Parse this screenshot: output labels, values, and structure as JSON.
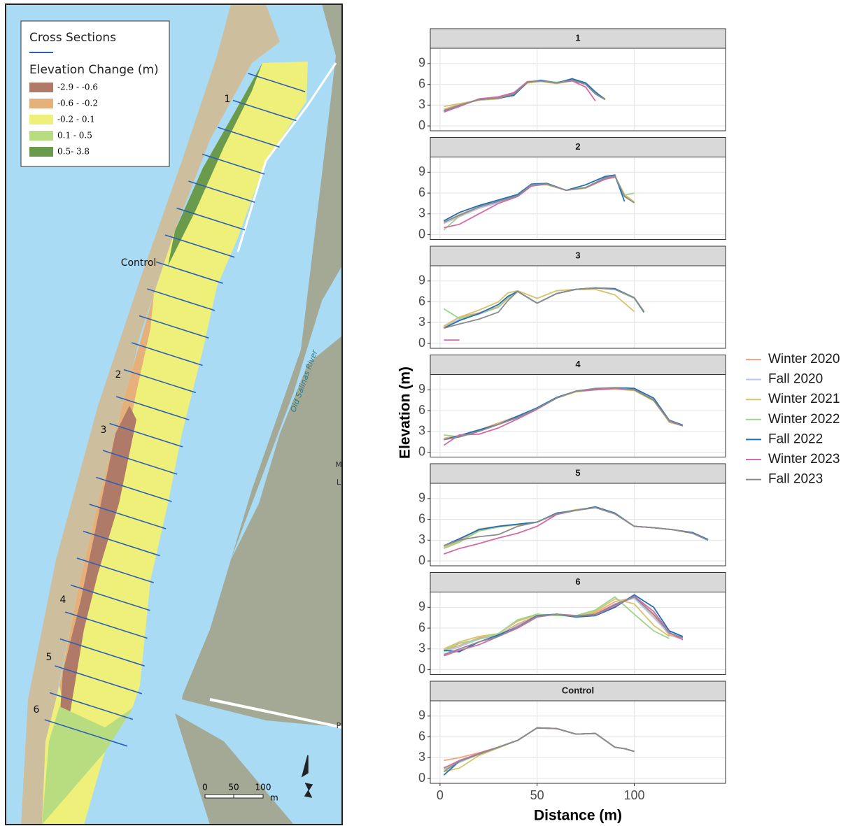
{
  "map": {
    "legend_title": "Cross Sections",
    "legend_subtitle": "Elevation Change (m)",
    "classes": [
      {
        "label": "-2.9 - -0.6",
        "color": "#b07a68"
      },
      {
        "label": "-0.6 - -0.2",
        "color": "#e6b07a"
      },
      {
        "label": "-0.2 - 0.1",
        "color": "#eef07a"
      },
      {
        "label": "0.1 - 0.5",
        "color": "#b8dc80"
      },
      {
        "label": "0.5- 3.8",
        "color": "#6a9a4c"
      }
    ],
    "labels": [
      "1",
      "Control",
      "2",
      "3",
      "4",
      "5",
      "6"
    ],
    "river": "Old Salinas River",
    "scale": [
      "0",
      "50",
      "100",
      "m"
    ],
    "edge_labels": [
      "M",
      "L",
      "P"
    ]
  },
  "chart_data": {
    "type": "line",
    "xlabel": "Distance (m)",
    "ylabel": "Elevation (m)",
    "xlim": [
      -5,
      147
    ],
    "xticks": [
      0,
      50,
      100
    ],
    "ylim": [
      -0.7,
      11.2
    ],
    "yticks": [
      0,
      3,
      6,
      9
    ],
    "grid": true,
    "legend_position": "right",
    "series": [
      {
        "name": "Winter 2020",
        "color": "#f4a582"
      },
      {
        "name": "Fall 2020",
        "color": "#b9c3ee"
      },
      {
        "name": "Winter 2021",
        "color": "#d6c46a"
      },
      {
        "name": "Winter 2022",
        "color": "#9fd28c"
      },
      {
        "name": "Fall 2022",
        "color": "#2070b4"
      },
      {
        "name": "Winter 2023",
        "color": "#d66aa8"
      },
      {
        "name": "Fall 2023",
        "color": "#8c8c8c"
      }
    ],
    "facets": [
      {
        "title": "1",
        "x": [
          2,
          10,
          20,
          30,
          38,
          45,
          52,
          60,
          68,
          75,
          80,
          85
        ],
        "series": [
          {
            "values": [
              2.4,
              3.1,
              3.8,
              4.1,
              4.7,
              6.2,
              6.5,
              6.2,
              6.5,
              6.1,
              4.7,
              3.9
            ]
          },
          {
            "values": [
              2.2,
              3.0,
              3.8,
              4.0,
              4.6,
              6.3,
              6.5,
              6.2,
              6.6,
              6.0,
              4.6,
              3.8
            ]
          },
          {
            "values": [
              2.8,
              3.2,
              3.7,
              3.9,
              4.5,
              6.2,
              6.4,
              6.1,
              6.5,
              6.1,
              4.8,
              3.9
            ]
          },
          {
            "values": [
              2.3,
              3.0,
              3.8,
              4.0,
              4.6,
              6.3,
              6.5,
              6.3,
              6.6,
              6.2,
              4.7,
              3.8
            ]
          },
          {
            "values": [
              2.1,
              2.9,
              3.8,
              4.0,
              4.4,
              6.3,
              6.6,
              6.2,
              6.8,
              6.2,
              4.9,
              3.8
            ]
          },
          {
            "values": [
              2.0,
              2.8,
              3.9,
              4.2,
              4.8,
              6.4,
              6.5,
              6.2,
              6.5,
              5.6,
              3.6,
              null
            ]
          },
          {
            "values": [
              2.2,
              3.0,
              3.8,
              4.0,
              4.6,
              6.3,
              6.5,
              6.2,
              6.6,
              6.0,
              4.6,
              3.8
            ]
          }
        ]
      },
      {
        "title": "2",
        "x": [
          2,
          10,
          20,
          30,
          40,
          47,
          55,
          65,
          75,
          85,
          90,
          95,
          100
        ],
        "series": [
          {
            "values": [
              1.8,
              2.9,
              4.0,
              4.8,
              5.7,
              7.2,
              7.3,
              6.4,
              6.8,
              8.2,
              8.5,
              5.6,
              4.6
            ]
          },
          {
            "values": [
              1.6,
              2.6,
              3.8,
              4.6,
              5.6,
              7.1,
              7.3,
              6.4,
              6.8,
              8.2,
              8.4,
              5.5,
              4.6
            ]
          },
          {
            "values": [
              1.8,
              2.8,
              4.0,
              4.9,
              5.6,
              7.2,
              7.2,
              6.4,
              6.7,
              8.0,
              8.4,
              5.8,
              4.7
            ]
          },
          {
            "values": [
              0.7,
              2.7,
              4.0,
              4.8,
              5.6,
              7.2,
              7.3,
              6.4,
              6.8,
              8.1,
              8.5,
              5.7,
              6.0
            ]
          },
          {
            "values": [
              2.0,
              3.2,
              4.2,
              5.0,
              5.8,
              7.3,
              7.4,
              6.4,
              7.2,
              8.4,
              8.6,
              4.8,
              null
            ]
          },
          {
            "values": [
              1.0,
              1.5,
              3.0,
              4.5,
              5.5,
              7.0,
              7.3,
              6.4,
              6.8,
              8.0,
              8.3,
              null,
              null
            ]
          },
          {
            "values": [
              1.8,
              2.8,
              4.0,
              4.8,
              5.6,
              7.2,
              7.3,
              6.4,
              6.8,
              8.2,
              8.5,
              5.5,
              4.6
            ]
          }
        ]
      },
      {
        "title": "3",
        "x": [
          2,
          10,
          20,
          30,
          35,
          40,
          50,
          60,
          70,
          80,
          90,
          100,
          105
        ],
        "series": [
          {
            "values": [
              2.5,
              3.8,
              4.4,
              5.3,
              6.6,
              7.5,
              5.8,
              7.2,
              7.8,
              8.0,
              7.8,
              6.5,
              4.5
            ]
          },
          {
            "values": [
              2.3,
              3.5,
              4.2,
              5.2,
              6.5,
              7.5,
              5.8,
              7.2,
              7.8,
              8.0,
              7.8,
              6.5,
              4.5
            ]
          },
          {
            "values": [
              2.4,
              3.8,
              4.8,
              6.0,
              7.3,
              7.6,
              6.5,
              7.6,
              7.8,
              7.8,
              7.0,
              4.6,
              null
            ]
          },
          {
            "values": [
              5.0,
              3.6,
              4.3,
              5.2,
              6.5,
              7.5,
              5.8,
              7.2,
              7.8,
              8.0,
              7.8,
              6.5,
              4.5
            ]
          },
          {
            "values": [
              2.2,
              3.3,
              4.3,
              5.6,
              6.8,
              7.5,
              5.8,
              7.2,
              7.8,
              8.0,
              7.9,
              6.6,
              4.5
            ]
          },
          {
            "values": [
              0.5,
              0.5,
              null,
              null,
              null,
              null,
              null,
              null,
              null,
              null,
              null,
              null,
              null
            ]
          },
          {
            "values": [
              2.2,
              2.8,
              3.5,
              4.5,
              6.2,
              7.5,
              5.8,
              7.2,
              7.8,
              8.0,
              7.8,
              6.6,
              4.6
            ]
          }
        ]
      },
      {
        "title": "4",
        "x": [
          2,
          10,
          20,
          30,
          40,
          50,
          60,
          70,
          80,
          90,
          100,
          110,
          118,
          125
        ],
        "series": [
          {
            "values": [
              2.0,
              2.4,
              3.2,
              4.2,
              5.2,
              6.3,
              7.8,
              8.8,
              9.1,
              9.2,
              9.0,
              7.6,
              4.3,
              3.8
            ]
          },
          {
            "values": [
              1.8,
              2.2,
              3.0,
              4.0,
              5.0,
              6.3,
              7.8,
              8.8,
              9.0,
              9.2,
              9.0,
              7.5,
              4.5,
              3.8
            ]
          },
          {
            "values": [
              1.9,
              2.3,
              3.1,
              4.1,
              5.0,
              6.3,
              7.8,
              8.7,
              9.0,
              9.1,
              8.9,
              7.4,
              4.4,
              3.9
            ]
          },
          {
            "values": [
              2.5,
              2.2,
              3.0,
              4.0,
              5.0,
              6.3,
              7.8,
              8.8,
              9.0,
              9.2,
              9.0,
              7.5,
              4.5,
              3.8
            ]
          },
          {
            "values": [
              1.8,
              2.4,
              3.2,
              4.0,
              5.2,
              6.4,
              7.9,
              8.8,
              9.1,
              9.3,
              9.2,
              7.8,
              4.6,
              3.9
            ]
          },
          {
            "values": [
              1.0,
              2.5,
              2.6,
              3.5,
              4.8,
              6.2,
              7.8,
              8.8,
              9.0,
              9.2,
              9.0,
              7.5,
              4.5,
              3.8
            ]
          },
          {
            "values": [
              1.8,
              2.2,
              3.0,
              4.0,
              5.0,
              6.3,
              7.8,
              8.8,
              9.2,
              9.3,
              9.0,
              7.5,
              4.5,
              3.8
            ]
          }
        ]
      },
      {
        "title": "5",
        "x": [
          2,
          10,
          20,
          30,
          40,
          50,
          60,
          70,
          80,
          90,
          100,
          110,
          120,
          130,
          138
        ],
        "series": [
          {
            "values": [
              2.2,
              3.0,
              4.6,
              5.0,
              5.3,
              5.6,
              6.8,
              7.3,
              7.7,
              6.8,
              5.0,
              4.8,
              4.5,
              4.0,
              3.0
            ]
          },
          {
            "values": [
              2.0,
              2.8,
              4.5,
              5.0,
              5.3,
              5.6,
              6.8,
              7.3,
              7.7,
              6.8,
              5.0,
              4.8,
              4.5,
              4.0,
              3.0
            ]
          },
          {
            "values": [
              2.0,
              2.8,
              4.4,
              4.9,
              5.2,
              5.6,
              6.8,
              7.4,
              7.7,
              6.8,
              5.0,
              4.8,
              4.5,
              4.0,
              3.0
            ]
          },
          {
            "values": [
              1.8,
              2.7,
              4.3,
              4.9,
              5.3,
              5.6,
              6.8,
              7.3,
              7.7,
              6.8,
              5.0,
              4.8,
              4.5,
              4.0,
              3.0
            ]
          },
          {
            "values": [
              2.2,
              3.2,
              4.5,
              5.0,
              5.3,
              5.6,
              6.9,
              7.3,
              7.8,
              6.9,
              5.0,
              4.8,
              4.5,
              4.1,
              3.1
            ]
          },
          {
            "values": [
              1.0,
              1.8,
              2.5,
              3.3,
              4.0,
              5.0,
              6.7,
              7.3,
              7.7,
              6.8,
              5.0,
              4.8,
              4.5,
              4.0,
              3.0
            ]
          },
          {
            "values": [
              2.2,
              3.0,
              3.5,
              3.8,
              5.0,
              5.6,
              6.8,
              7.3,
              7.7,
              6.8,
              5.0,
              4.8,
              4.5,
              4.0,
              3.0
            ]
          }
        ]
      },
      {
        "title": "6",
        "x": [
          2,
          10,
          20,
          30,
          40,
          50,
          60,
          70,
          80,
          90,
          100,
          110,
          118,
          125
        ],
        "series": [
          {
            "values": [
              2.8,
              3.5,
              4.6,
              5.0,
              6.6,
              7.8,
              8.0,
              7.8,
              8.2,
              9.8,
              10.4,
              7.8,
              5.0,
              4.4
            ]
          },
          {
            "values": [
              2.6,
              3.3,
              4.4,
              5.0,
              6.4,
              7.7,
              8.0,
              7.8,
              8.0,
              9.5,
              10.3,
              7.5,
              5.2,
              4.5
            ]
          },
          {
            "values": [
              3.0,
              4.0,
              4.8,
              5.2,
              7.0,
              7.9,
              7.9,
              7.6,
              8.4,
              10.2,
              9.5,
              6.4,
              4.8,
              null
            ]
          },
          {
            "values": [
              2.8,
              3.8,
              4.4,
              5.2,
              7.2,
              8.0,
              7.8,
              7.8,
              8.6,
              10.5,
              8.0,
              5.6,
              4.5,
              null
            ]
          },
          {
            "values": [
              2.8,
              2.6,
              4.0,
              5.0,
              6.2,
              7.8,
              8.0,
              7.6,
              7.8,
              9.0,
              10.8,
              9.0,
              5.6,
              4.8
            ]
          },
          {
            "values": [
              2.0,
              2.8,
              3.6,
              4.8,
              6.0,
              7.6,
              8.0,
              7.8,
              7.9,
              9.2,
              10.6,
              8.4,
              5.4,
              4.3
            ]
          },
          {
            "values": [
              2.2,
              3.0,
              4.0,
              4.8,
              6.2,
              7.7,
              8.0,
              7.7,
              8.0,
              9.4,
              10.5,
              8.0,
              5.3,
              4.6
            ]
          }
        ]
      },
      {
        "title": "Control",
        "x": [
          2,
          10,
          20,
          30,
          40,
          50,
          60,
          70,
          80,
          90,
          95,
          100
        ],
        "series": [
          {
            "values": [
              2.6,
              3.0,
              3.7,
              4.5,
              5.5,
              7.3,
              7.2,
              6.4,
              6.5,
              4.5,
              4.3,
              3.9
            ]
          },
          {
            "values": [
              1.6,
              2.3,
              3.5,
              4.5,
              5.5,
              7.3,
              7.2,
              6.4,
              6.5,
              4.5,
              4.3,
              3.9
            ]
          },
          {
            "values": [
              1.0,
              1.5,
              3.3,
              4.4,
              5.5,
              7.3,
              7.2,
              6.4,
              6.5,
              4.5,
              4.3,
              3.9
            ]
          },
          {
            "values": [
              1.3,
              2.4,
              3.5,
              4.5,
              5.5,
              7.3,
              7.2,
              6.4,
              6.5,
              4.5,
              4.3,
              3.9
            ]
          },
          {
            "values": [
              0.5,
              2.5,
              3.6,
              4.5,
              5.5,
              7.3,
              7.2,
              6.4,
              6.5,
              4.5,
              4.3,
              3.9
            ]
          },
          {
            "values": [
              1.5,
              2.6,
              3.6,
              4.5,
              5.5,
              7.3,
              7.2,
              6.4,
              6.5,
              4.5,
              4.3,
              3.9
            ]
          },
          {
            "values": [
              1.0,
              2.5,
              3.5,
              4.5,
              5.5,
              7.3,
              7.2,
              6.4,
              6.5,
              4.5,
              4.3,
              3.9
            ]
          }
        ]
      }
    ]
  }
}
